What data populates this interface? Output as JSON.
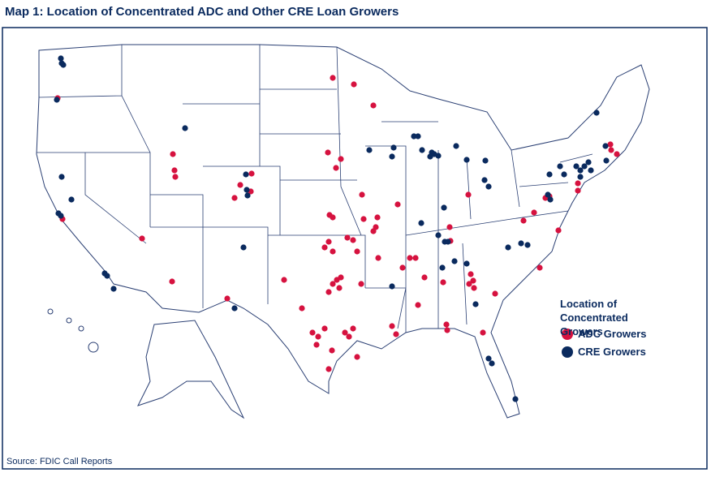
{
  "header": {
    "title": "Map 1:  Location of Concentrated ADC and Other CRE Loan Growers"
  },
  "legend": {
    "title": "Location of Concentrated Growers",
    "items": [
      {
        "label": "ADC Growers",
        "color": "#d6123f"
      },
      {
        "label": "CRE Growers",
        "color": "#0a2a5e"
      }
    ]
  },
  "footer": {
    "source": "Source: FDIC Call Reports"
  }
}
